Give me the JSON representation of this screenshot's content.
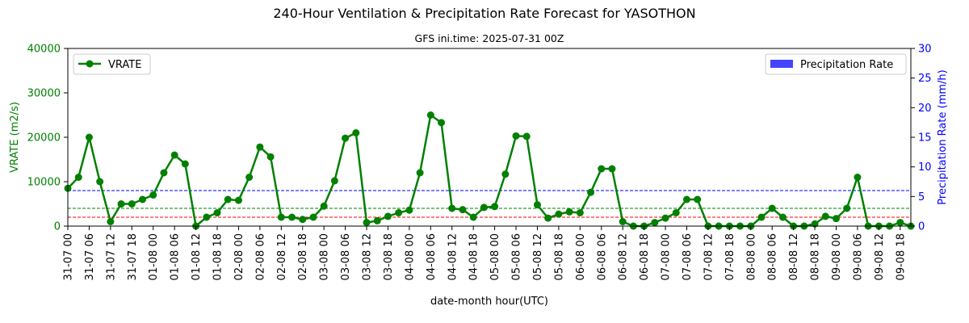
{
  "chart_data": {
    "type": "line",
    "title": "240-Hour Ventilation & Precipitation Rate Forecast for YASOTHON",
    "subtitle": "GFS ini.time: 2025-07-31 00Z",
    "xlabel": "date-month hour(UTC)",
    "ylabel_left": "VRATE (m2/s)",
    "ylabel_right": "Precipitation Rate (mm/h)",
    "ylim_left": [
      0,
      40000
    ],
    "ylim_right": [
      0,
      30
    ],
    "yticks_left": [
      0,
      10000,
      20000,
      30000,
      40000
    ],
    "yticks_right": [
      0,
      5,
      10,
      15,
      20,
      25,
      30
    ],
    "grid": false,
    "legend_left": {
      "label": "VRATE",
      "position": "upper-left"
    },
    "legend_right": {
      "label": "Precipitation Rate",
      "position": "upper-right"
    },
    "x_tick_labels": [
      "31-07 00",
      "31-07 06",
      "31-07 12",
      "31-07 18",
      "01-08 00",
      "01-08 06",
      "01-08 12",
      "01-08 18",
      "02-08 00",
      "02-08 06",
      "02-08 12",
      "02-08 18",
      "03-08 00",
      "03-08 06",
      "03-08 12",
      "03-08 18",
      "04-08 00",
      "04-08 06",
      "04-08 12",
      "04-08 18",
      "05-08 00",
      "05-08 06",
      "05-08 12",
      "05-08 18",
      "06-08 00",
      "06-08 06",
      "06-08 12",
      "06-08 18",
      "07-08 00",
      "07-08 06",
      "07-08 12",
      "07-08 18",
      "08-08 00",
      "08-08 06",
      "08-08 12",
      "08-08 18",
      "09-08 00",
      "09-08 06",
      "09-08 12",
      "09-08 18"
    ],
    "x_hours_step": 3,
    "series": [
      {
        "name": "VRATE",
        "color": "#008000",
        "values": [
          8500,
          11000,
          20000,
          10000,
          1000,
          5000,
          5000,
          6000,
          7000,
          12000,
          16000,
          14000,
          0,
          2000,
          3000,
          6000,
          5800,
          11000,
          17800,
          15600,
          2000,
          2000,
          1500,
          2000,
          4500,
          10200,
          19800,
          21000,
          800,
          1200,
          2200,
          3000,
          3600,
          12000,
          25000,
          23300,
          4000,
          3700,
          2000,
          4200,
          4400,
          11700,
          20300,
          20200,
          4800,
          1800,
          2700,
          3200,
          3000,
          7600,
          12900,
          12900,
          1000,
          0,
          0,
          800,
          1800,
          3000,
          6000,
          6000,
          0,
          0,
          0,
          0,
          0,
          2000,
          4000,
          2000,
          0,
          0,
          500,
          2200,
          1700,
          4000,
          11000,
          0,
          0,
          0,
          800,
          0
        ],
        "marker": "circle"
      },
      {
        "name": "Precipitation Rate",
        "color": "#4444ff",
        "axis": "right",
        "values": [
          0,
          0,
          0,
          0,
          0,
          0,
          0,
          0,
          0,
          0,
          0,
          0,
          0,
          0,
          0,
          0,
          0,
          0,
          0,
          0,
          0,
          0,
          0,
          0,
          0,
          0,
          0,
          0,
          0,
          0,
          0,
          0,
          0,
          0,
          0,
          0,
          0,
          0,
          0,
          0,
          0,
          0,
          0,
          0,
          0,
          0,
          0,
          0,
          0,
          0,
          0,
          0,
          0,
          0,
          0,
          0,
          0,
          0,
          0,
          0,
          0,
          0,
          0,
          0,
          0,
          0,
          0,
          0,
          0,
          0,
          0,
          0,
          0,
          0,
          0,
          0,
          0,
          0,
          0,
          0
        ]
      }
    ],
    "reference_lines": [
      {
        "value": 8000,
        "color": "#0000ff"
      },
      {
        "value": 4000,
        "color": "#008000"
      },
      {
        "value": 2000,
        "color": "#ff0000"
      }
    ],
    "colors": {
      "vrate": "#008000",
      "precip": "#0000ff",
      "precip_bar": "#4444ff"
    }
  }
}
